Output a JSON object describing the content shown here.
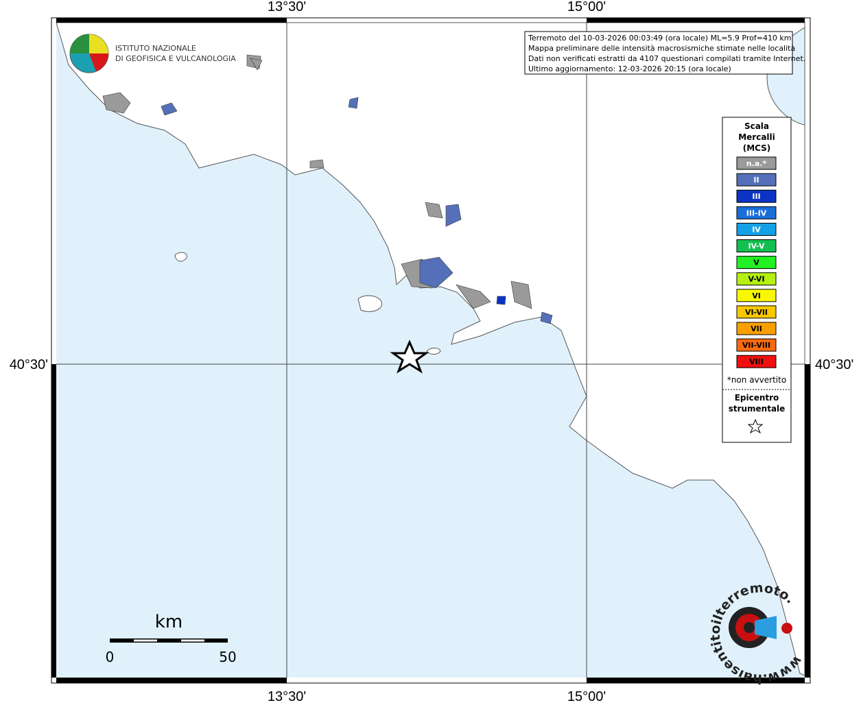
{
  "map": {
    "grid_labels": {
      "lon_left": "13°30'",
      "lon_right": "15°00'",
      "lat": "40°30'"
    },
    "logo": {
      "line1": "ISTITUTO NAZIONALE",
      "line2": "DI GEOFISICA E VULCANOLOGIA"
    },
    "info": [
      "Terremoto del 10-03-2026 00:03:49 (ora locale) ML=5.9 Prof=410 km",
      "Mappa preliminare delle intensità macrosismiche stimate nelle località",
      "Dati non verificati estratti da 4107 questionari compilati tramite Internet.",
      "Ultimo aggiornamento: 12-03-2026 20:15 (ora locale)"
    ],
    "legend": {
      "title": [
        "Scala",
        "Mercalli",
        "(MCS)"
      ],
      "items": [
        {
          "label": "n.a.*",
          "color": "#9a9a9a"
        },
        {
          "label": "II",
          "color": "#5570b8"
        },
        {
          "label": "III",
          "color": "#0b34c4"
        },
        {
          "label": "III-IV",
          "color": "#1a6ed8"
        },
        {
          "label": "IV",
          "color": "#14a0e6"
        },
        {
          "label": "IV-V",
          "color": "#12bf50"
        },
        {
          "label": "V",
          "color": "#22f022"
        },
        {
          "label": "V-VI",
          "color": "#b4f012"
        },
        {
          "label": "VI",
          "color": "#f8f800"
        },
        {
          "label": "VI-VII",
          "color": "#f8c800"
        },
        {
          "label": "VII",
          "color": "#f8a000"
        },
        {
          "label": "VII-VIII",
          "color": "#f86a10"
        },
        {
          "label": "VIII",
          "color": "#f01010"
        }
      ],
      "note": "*non avvertito",
      "epicenter": [
        "Epicentro",
        "strumentale"
      ]
    },
    "scale_bar": {
      "unit": "km",
      "start": 0,
      "end": 50
    },
    "watermark": "www.haisentitoilterremoto.it"
  }
}
